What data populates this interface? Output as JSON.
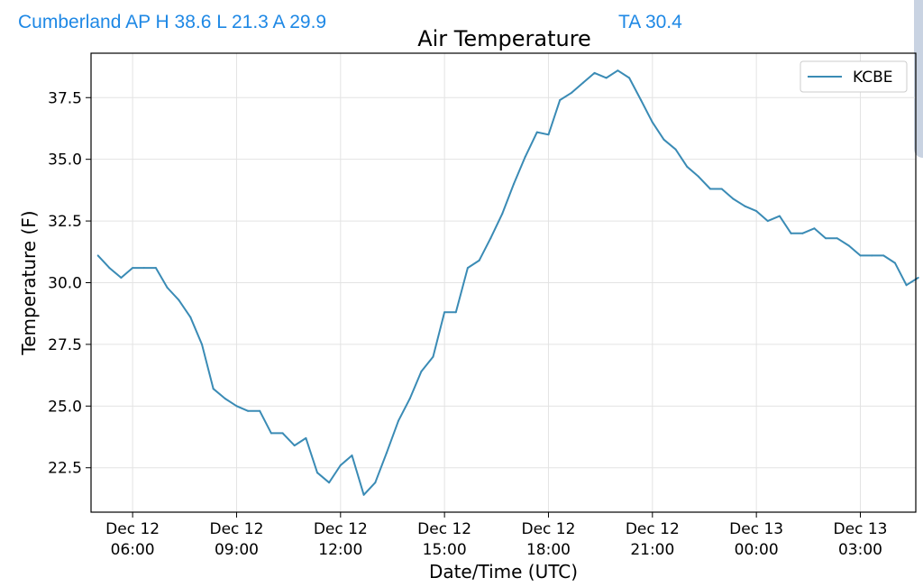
{
  "header": {
    "summary": "Cumberland AP H 38.6 L 21.3 A 29.9",
    "avg": "TA 30.4"
  },
  "colors": {
    "header_text": "#1e88e5",
    "series_line": "#3a8bb5"
  },
  "chart_data": {
    "type": "line",
    "title": "Air Temperature",
    "xlabel": "Date/Time (UTC)",
    "ylabel": "Temperature (F)",
    "x_unit": "hours since Dec 12 05:00 UTC",
    "xlim": [
      -0.2,
      23.6
    ],
    "ylim": [
      20.7,
      39.3
    ],
    "grid": true,
    "legend_position": "top-right",
    "y_ticks": [
      "22.5",
      "25.0",
      "27.5",
      "30.0",
      "32.5",
      "35.0",
      "37.5"
    ],
    "x_ticks": [
      {
        "t": 1,
        "line1": "Dec 12",
        "line2": "06:00"
      },
      {
        "t": 4,
        "line1": "Dec 12",
        "line2": "09:00"
      },
      {
        "t": 7,
        "line1": "Dec 12",
        "line2": "12:00"
      },
      {
        "t": 10,
        "line1": "Dec 12",
        "line2": "15:00"
      },
      {
        "t": 13,
        "line1": "Dec 12",
        "line2": "18:00"
      },
      {
        "t": 16,
        "line1": "Dec 12",
        "line2": "21:00"
      },
      {
        "t": 19,
        "line1": "Dec 13",
        "line2": "00:00"
      },
      {
        "t": 22,
        "line1": "Dec 13",
        "line2": "03:00"
      }
    ],
    "series": [
      {
        "name": "KCBE",
        "points": [
          [
            0.0,
            31.1
          ],
          [
            0.33,
            30.6
          ],
          [
            0.67,
            30.2
          ],
          [
            1.0,
            30.6
          ],
          [
            1.33,
            30.6
          ],
          [
            1.67,
            30.6
          ],
          [
            2.0,
            29.8
          ],
          [
            2.33,
            29.3
          ],
          [
            2.67,
            28.6
          ],
          [
            3.0,
            27.5
          ],
          [
            3.33,
            25.7
          ],
          [
            3.67,
            25.3
          ],
          [
            4.0,
            25.0
          ],
          [
            4.33,
            24.8
          ],
          [
            4.67,
            24.8
          ],
          [
            5.0,
            23.9
          ],
          [
            5.33,
            23.9
          ],
          [
            5.67,
            23.4
          ],
          [
            6.0,
            23.7
          ],
          [
            6.33,
            22.3
          ],
          [
            6.67,
            21.9
          ],
          [
            7.0,
            22.6
          ],
          [
            7.33,
            23.0
          ],
          [
            7.67,
            21.4
          ],
          [
            8.0,
            21.9
          ],
          [
            8.33,
            23.1
          ],
          [
            8.67,
            24.4
          ],
          [
            9.0,
            25.3
          ],
          [
            9.33,
            26.4
          ],
          [
            9.67,
            27.0
          ],
          [
            10.0,
            28.8
          ],
          [
            10.33,
            28.8
          ],
          [
            10.67,
            30.6
          ],
          [
            11.0,
            30.9
          ],
          [
            11.33,
            31.8
          ],
          [
            11.67,
            32.8
          ],
          [
            12.0,
            34.0
          ],
          [
            12.33,
            35.1
          ],
          [
            12.67,
            36.1
          ],
          [
            13.0,
            36.0
          ],
          [
            13.33,
            37.4
          ],
          [
            13.67,
            37.7
          ],
          [
            14.0,
            38.1
          ],
          [
            14.33,
            38.5
          ],
          [
            14.67,
            38.3
          ],
          [
            15.0,
            38.6
          ],
          [
            15.33,
            38.3
          ],
          [
            15.67,
            37.4
          ],
          [
            16.0,
            36.5
          ],
          [
            16.33,
            35.8
          ],
          [
            16.67,
            35.4
          ],
          [
            17.0,
            34.7
          ],
          [
            17.33,
            34.3
          ],
          [
            17.67,
            33.8
          ],
          [
            18.0,
            33.8
          ],
          [
            18.33,
            33.4
          ],
          [
            18.67,
            33.1
          ],
          [
            19.0,
            32.9
          ],
          [
            19.33,
            32.5
          ],
          [
            19.67,
            32.7
          ],
          [
            20.0,
            32.0
          ],
          [
            20.33,
            32.0
          ],
          [
            20.67,
            32.2
          ],
          [
            21.0,
            31.8
          ],
          [
            21.33,
            31.8
          ],
          [
            21.67,
            31.5
          ],
          [
            22.0,
            31.1
          ],
          [
            22.33,
            31.1
          ],
          [
            22.67,
            31.1
          ],
          [
            23.0,
            30.8
          ],
          [
            23.33,
            29.9
          ],
          [
            23.67,
            30.2
          ]
        ]
      }
    ]
  }
}
